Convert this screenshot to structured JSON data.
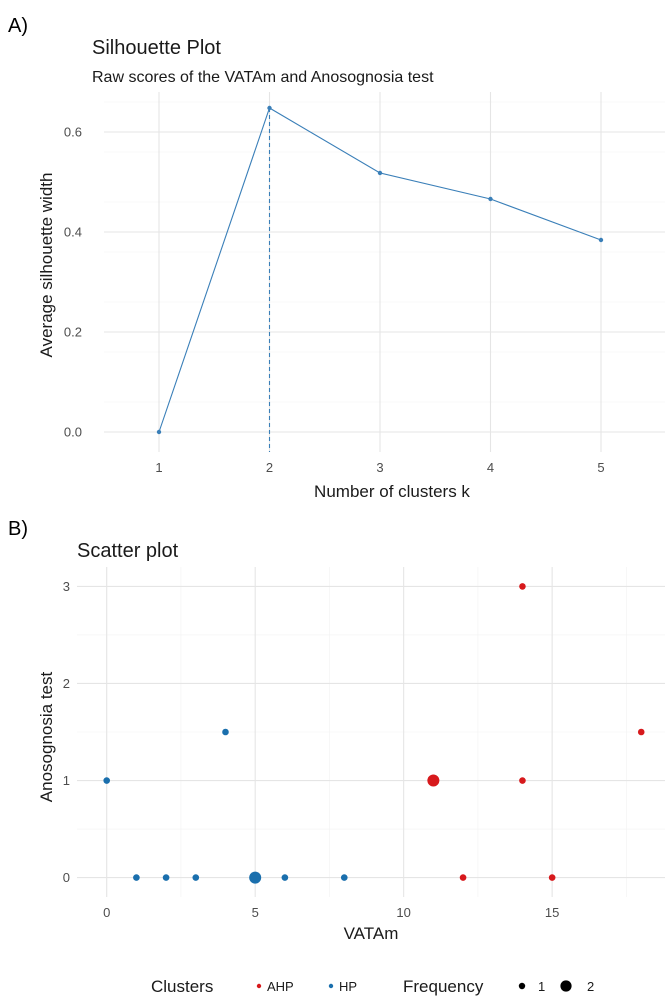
{
  "panel_a": {
    "letter": "A)",
    "title": "Silhouette Plot",
    "subtitle": "Raw scores of the VATAm and Anosognosia test"
  },
  "panel_b": {
    "letter": "B)",
    "title": "Scatter plot"
  },
  "colors": {
    "line": "#3a7fb8",
    "ahp": "#d7191c",
    "hp": "#1a6fad"
  },
  "chart_data": [
    {
      "type": "line",
      "title": "Silhouette Plot",
      "subtitle": "Raw scores of the VATAm and Anosognosia test",
      "xlabel": "Number of clusters k",
      "ylabel": "Average silhouette width",
      "categories": [
        "1",
        "2",
        "3",
        "4",
        "5"
      ],
      "values": [
        0.0,
        0.648,
        0.518,
        0.466,
        0.384
      ],
      "optimal_k": "2",
      "ylim": [
        -0.04,
        0.68
      ],
      "yticks": [
        0.0,
        0.2,
        0.4,
        0.6
      ],
      "ytick_labels": [
        "0.0",
        "0.2",
        "0.4",
        "0.6"
      ],
      "grid": true
    },
    {
      "type": "scatter",
      "title": "Scatter plot",
      "xlabel": "VATAm",
      "ylabel": "Anosognosia test",
      "xlim": [
        -1,
        18.8
      ],
      "ylim": [
        -0.2,
        3.2
      ],
      "xticks": [
        0,
        5,
        10,
        15
      ],
      "yticks": [
        0,
        1,
        2,
        3
      ],
      "grid": true,
      "points": [
        {
          "x": 0,
          "y": 1,
          "cluster": "HP",
          "frequency": 1
        },
        {
          "x": 4,
          "y": 1.5,
          "cluster": "HP",
          "frequency": 1
        },
        {
          "x": 1,
          "y": 0,
          "cluster": "HP",
          "frequency": 1
        },
        {
          "x": 2,
          "y": 0,
          "cluster": "HP",
          "frequency": 1
        },
        {
          "x": 3,
          "y": 0,
          "cluster": "HP",
          "frequency": 1
        },
        {
          "x": 5,
          "y": 0,
          "cluster": "HP",
          "frequency": 2
        },
        {
          "x": 6,
          "y": 0,
          "cluster": "HP",
          "frequency": 1
        },
        {
          "x": 8,
          "y": 0,
          "cluster": "HP",
          "frequency": 1
        },
        {
          "x": 11,
          "y": 1,
          "cluster": "AHP",
          "frequency": 2
        },
        {
          "x": 12,
          "y": 0,
          "cluster": "AHP",
          "frequency": 1
        },
        {
          "x": 14,
          "y": 3,
          "cluster": "AHP",
          "frequency": 1
        },
        {
          "x": 14,
          "y": 1,
          "cluster": "AHP",
          "frequency": 1
        },
        {
          "x": 15,
          "y": 0,
          "cluster": "AHP",
          "frequency": 1
        },
        {
          "x": 18,
          "y": 1.5,
          "cluster": "AHP",
          "frequency": 1
        }
      ],
      "legend": {
        "position": "bottom",
        "clusters_title": "Clusters",
        "cluster_items": [
          "AHP",
          "HP"
        ],
        "frequency_title": "Frequency",
        "frequency_items": [
          "1",
          "2"
        ]
      }
    }
  ]
}
